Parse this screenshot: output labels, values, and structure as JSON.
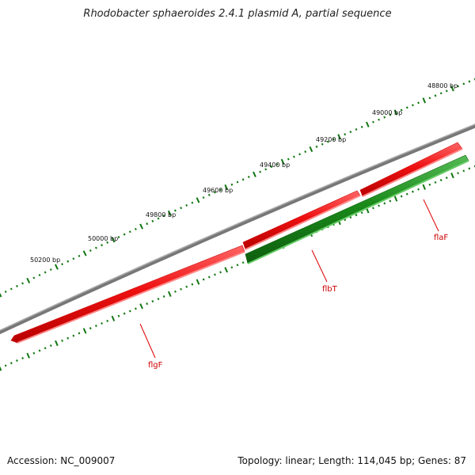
{
  "title": "Rhodobacter sphaeroides 2.4.1 plasmid A, partial sequence",
  "footer": {
    "accession": "Accession: NC_009007",
    "summary": "Topology: linear; Length: 114,045 bp; Genes: 87"
  },
  "scale": {
    "unit": "bp",
    "labels": [
      "48800 bp",
      "49000 bp",
      "49200 bp",
      "49400 bp",
      "49600 bp",
      "49800 bp",
      "50000 bp",
      "50200 bp"
    ]
  },
  "genes": [
    {
      "name": "flaF",
      "strand": "reverse",
      "color": "#ee1111"
    },
    {
      "name": "flbT",
      "strand": "forward",
      "color": "#1a8a1a"
    },
    {
      "name": "flgF",
      "strand": "reverse",
      "color": "#ee1111"
    }
  ],
  "colors": {
    "backbone": "#777777",
    "reverse_gene": "#ee1111",
    "forward_gene": "#1a8a1a",
    "tick": "#117711",
    "label_line": "#dd0000"
  }
}
